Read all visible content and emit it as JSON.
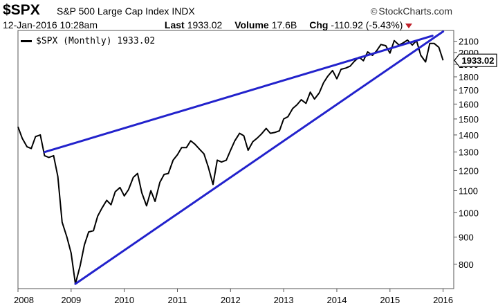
{
  "header": {
    "symbol": "$SPX",
    "name": "S&P 500 Large Cap Index",
    "exchange": "INDX",
    "brand": "StockCharts.com",
    "brand_icon": "copyright-icon",
    "timestamp": "12-Jan-2016 10:28am",
    "last_label": "Last",
    "last_value": "1933.02",
    "volume_label": "Volume",
    "volume_value": "17.6B",
    "chg_label": "Chg",
    "chg_value": "-110.92 (-5.43%)",
    "chg_color": "#c0202a"
  },
  "legend": {
    "label": "$SPX (Monthly) 1933.02"
  },
  "chart_data": {
    "type": "line",
    "title": "",
    "xlabel": "",
    "ylabel": "",
    "scale": "log",
    "grid": false,
    "legend_position": "top-left",
    "ylim": [
      720,
      2200
    ],
    "x_range": [
      2008.0,
      2016.2
    ],
    "x_ticks": [
      "2008",
      "2009",
      "2010",
      "2011",
      "2012",
      "2013",
      "2014",
      "2015",
      "2016"
    ],
    "y_ticks": [
      "800",
      "900",
      "1000",
      "1100",
      "1200",
      "1300",
      "1400",
      "1500",
      "1600",
      "1700",
      "1800",
      "1900",
      "2000",
      "2100"
    ],
    "last_value_label": "1933.02",
    "series": [
      {
        "name": "$SPX (Monthly)",
        "color": "#000000",
        "points": [
          [
            2008.0,
            1450
          ],
          [
            2008.08,
            1380
          ],
          [
            2008.17,
            1330
          ],
          [
            2008.25,
            1320
          ],
          [
            2008.33,
            1390
          ],
          [
            2008.42,
            1400
          ],
          [
            2008.5,
            1280
          ],
          [
            2008.58,
            1270
          ],
          [
            2008.67,
            1280
          ],
          [
            2008.75,
            1170
          ],
          [
            2008.83,
            960
          ],
          [
            2008.92,
            900
          ],
          [
            2009.0,
            840
          ],
          [
            2009.08,
            735
          ],
          [
            2009.17,
            795
          ],
          [
            2009.25,
            870
          ],
          [
            2009.33,
            920
          ],
          [
            2009.42,
            925
          ],
          [
            2009.5,
            985
          ],
          [
            2009.58,
            1020
          ],
          [
            2009.67,
            1055
          ],
          [
            2009.75,
            1035
          ],
          [
            2009.83,
            1095
          ],
          [
            2009.92,
            1115
          ],
          [
            2010.0,
            1075
          ],
          [
            2010.08,
            1105
          ],
          [
            2010.17,
            1165
          ],
          [
            2010.25,
            1185
          ],
          [
            2010.33,
            1090
          ],
          [
            2010.42,
            1030
          ],
          [
            2010.5,
            1100
          ],
          [
            2010.58,
            1050
          ],
          [
            2010.67,
            1140
          ],
          [
            2010.75,
            1180
          ],
          [
            2010.83,
            1185
          ],
          [
            2010.92,
            1255
          ],
          [
            2011.0,
            1285
          ],
          [
            2011.08,
            1325
          ],
          [
            2011.17,
            1325
          ],
          [
            2011.25,
            1365
          ],
          [
            2011.33,
            1345
          ],
          [
            2011.42,
            1315
          ],
          [
            2011.5,
            1290
          ],
          [
            2011.58,
            1220
          ],
          [
            2011.67,
            1130
          ],
          [
            2011.75,
            1255
          ],
          [
            2011.83,
            1245
          ],
          [
            2011.92,
            1255
          ],
          [
            2012.0,
            1310
          ],
          [
            2012.08,
            1365
          ],
          [
            2012.17,
            1410
          ],
          [
            2012.25,
            1395
          ],
          [
            2012.33,
            1310
          ],
          [
            2012.42,
            1360
          ],
          [
            2012.5,
            1380
          ],
          [
            2012.58,
            1405
          ],
          [
            2012.67,
            1440
          ],
          [
            2012.75,
            1410
          ],
          [
            2012.83,
            1415
          ],
          [
            2012.92,
            1425
          ],
          [
            2013.0,
            1500
          ],
          [
            2013.08,
            1515
          ],
          [
            2013.17,
            1570
          ],
          [
            2013.25,
            1595
          ],
          [
            2013.33,
            1630
          ],
          [
            2013.42,
            1605
          ],
          [
            2013.5,
            1685
          ],
          [
            2013.58,
            1635
          ],
          [
            2013.67,
            1680
          ],
          [
            2013.75,
            1755
          ],
          [
            2013.83,
            1805
          ],
          [
            2013.92,
            1850
          ],
          [
            2014.0,
            1785
          ],
          [
            2014.08,
            1860
          ],
          [
            2014.17,
            1870
          ],
          [
            2014.25,
            1885
          ],
          [
            2014.33,
            1925
          ],
          [
            2014.42,
            1960
          ],
          [
            2014.5,
            1930
          ],
          [
            2014.58,
            2005
          ],
          [
            2014.67,
            1975
          ],
          [
            2014.75,
            2015
          ],
          [
            2014.83,
            2070
          ],
          [
            2014.92,
            2060
          ],
          [
            2015.0,
            1995
          ],
          [
            2015.08,
            2105
          ],
          [
            2015.17,
            2065
          ],
          [
            2015.25,
            2085
          ],
          [
            2015.33,
            2110
          ],
          [
            2015.42,
            2065
          ],
          [
            2015.5,
            2105
          ],
          [
            2015.58,
            1975
          ],
          [
            2015.67,
            1920
          ],
          [
            2015.75,
            2080
          ],
          [
            2015.83,
            2080
          ],
          [
            2015.92,
            2045
          ],
          [
            2016.0,
            1933
          ]
        ]
      }
    ],
    "trendlines": [
      {
        "color": "#2222cc",
        "from": [
          2008.5,
          1300
        ],
        "to": [
          2015.8,
          2150
        ]
      },
      {
        "color": "#2222cc",
        "from": [
          2009.08,
          735
        ],
        "to": [
          2016.0,
          2190
        ]
      }
    ]
  }
}
